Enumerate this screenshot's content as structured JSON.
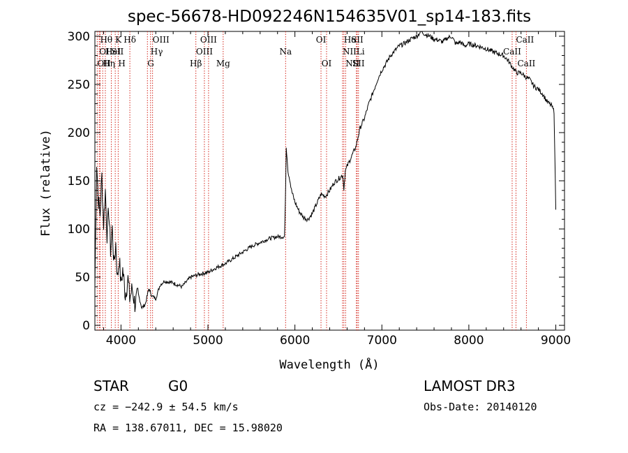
{
  "chart_data": {
    "type": "line",
    "title": "spec-56678-HD092246N154635V01_sp14-183.fits",
    "xlabel": "Wavelength (Å)",
    "ylabel": "Flux (relative)",
    "xlim": [
      3700,
      9100
    ],
    "ylim": [
      -5,
      305
    ],
    "x_ticks": [
      4000,
      5000,
      6000,
      7000,
      8000,
      9000
    ],
    "y_ticks": [
      0,
      50,
      100,
      150,
      200,
      250,
      300
    ],
    "x_tick_labels": [
      "4000",
      "5000",
      "6000",
      "7000",
      "8000",
      "9000"
    ],
    "y_tick_labels": [
      "0",
      "50",
      "100",
      "150",
      "200",
      "250",
      "300"
    ],
    "series": [
      {
        "name": "flux",
        "x": [
          3700,
          3720,
          3740,
          3760,
          3780,
          3800,
          3820,
          3840,
          3860,
          3880,
          3900,
          3920,
          3940,
          3960,
          3980,
          4000,
          4020,
          4050,
          4080,
          4100,
          4130,
          4160,
          4200,
          4240,
          4280,
          4320,
          4360,
          4400,
          4450,
          4500,
          4600,
          4700,
          4800,
          4900,
          5000,
          5100,
          5200,
          5300,
          5400,
          5500,
          5600,
          5700,
          5800,
          5880,
          5890,
          5900,
          5910,
          5920,
          5940,
          5960,
          6000,
          6050,
          6100,
          6150,
          6200,
          6250,
          6300,
          6350,
          6400,
          6450,
          6500,
          6550,
          6563,
          6580,
          6600,
          6650,
          6700,
          6750,
          6800,
          6850,
          6900,
          6950,
          7000,
          7050,
          7100,
          7150,
          7200,
          7250,
          7300,
          7350,
          7400,
          7450,
          7500,
          7550,
          7600,
          7650,
          7700,
          7750,
          7800,
          7850,
          7900,
          7950,
          8000,
          8100,
          8200,
          8300,
          8400,
          8450,
          8500,
          8550,
          8600,
          8650,
          8700,
          8750,
          8800,
          8850,
          8900,
          8950,
          8980,
          9000
        ],
        "y": [
          40,
          170,
          130,
          115,
          155,
          105,
          140,
          95,
          120,
          78,
          100,
          62,
          85,
          48,
          70,
          42,
          58,
          32,
          48,
          28,
          38,
          22,
          32,
          18,
          22,
          38,
          30,
          28,
          42,
          46,
          44,
          40,
          50,
          53,
          55,
          60,
          64,
          70,
          76,
          82,
          86,
          90,
          92,
          92,
          125,
          185,
          175,
          160,
          152,
          140,
          128,
          118,
          112,
          110,
          116,
          126,
          136,
          134,
          140,
          148,
          152,
          156,
          142,
          160,
          165,
          175,
          185,
          205,
          215,
          230,
          242,
          255,
          265,
          272,
          280,
          285,
          290,
          292,
          295,
          298,
          300,
          305,
          302,
          300,
          297,
          296,
          294,
          298,
          300,
          292,
          294,
          290,
          292,
          290,
          287,
          283,
          280,
          275,
          268,
          262,
          262,
          258,
          255,
          248,
          245,
          240,
          232,
          228,
          222,
          120
        ]
      }
    ],
    "line_ids": [
      {
        "wave": 3727,
        "label": "OII",
        "row": 3,
        "anchor": "start"
      },
      {
        "wave": 3750,
        "label": "OII",
        "row": 2,
        "anchor": "start"
      },
      {
        "wave": 3760,
        "label": "Hθ",
        "row": 1,
        "anchor": "start"
      },
      {
        "wave": 3790,
        "label": "Hη",
        "row": 3,
        "anchor": "start"
      },
      {
        "wave": 3820,
        "label": "HeI",
        "row": 2,
        "anchor": "start"
      },
      {
        "wave": 3889,
        "label": "SII",
        "row": 2,
        "anchor": "start"
      },
      {
        "wave": 3934,
        "label": "K",
        "row": 1,
        "anchor": "start"
      },
      {
        "wave": 3968,
        "label": "H",
        "row": 3,
        "anchor": "start"
      },
      {
        "wave": 4102,
        "label": "Hδ",
        "row": 1,
        "anchor": "middle"
      },
      {
        "wave": 4340,
        "label": "Hγ",
        "row": 2,
        "anchor": "start"
      },
      {
        "wave": 4363,
        "label": "OIII",
        "row": 1,
        "anchor": "start"
      },
      {
        "wave": 4304,
        "label": "G",
        "row": 3,
        "anchor": "start"
      },
      {
        "wave": 4861,
        "label": "Hβ",
        "row": 3,
        "anchor": "middle"
      },
      {
        "wave": 4959,
        "label": "OIII",
        "row": 2,
        "anchor": "middle"
      },
      {
        "wave": 5007,
        "label": "OIII",
        "row": 1,
        "anchor": "middle"
      },
      {
        "wave": 5175,
        "label": "Mg",
        "row": 3,
        "anchor": "middle"
      },
      {
        "wave": 5893,
        "label": "Na",
        "row": 2,
        "anchor": "middle"
      },
      {
        "wave": 6300,
        "label": "OI",
        "row": 1,
        "anchor": "middle"
      },
      {
        "wave": 6364,
        "label": "OI",
        "row": 3,
        "anchor": "middle"
      },
      {
        "wave": 6548,
        "label": "NII",
        "row": 2,
        "anchor": "start"
      },
      {
        "wave": 6563,
        "label": "Hα",
        "row": 1,
        "anchor": "start"
      },
      {
        "wave": 6583,
        "label": "NII",
        "row": 3,
        "anchor": "start"
      },
      {
        "wave": 6707,
        "label": "Li",
        "row": 2,
        "anchor": "start"
      },
      {
        "wave": 6716,
        "label": "SII",
        "row": 1,
        "anchor": "middle"
      },
      {
        "wave": 6731,
        "label": "SII",
        "row": 3,
        "anchor": "middle"
      },
      {
        "wave": 8498,
        "label": "CaII",
        "row": 2,
        "anchor": "middle"
      },
      {
        "wave": 8542,
        "label": "CaII",
        "row": 1,
        "anchor": "start"
      },
      {
        "wave": 8662,
        "label": "CaII",
        "row": 3,
        "anchor": "middle"
      }
    ]
  },
  "info": {
    "class": "STAR",
    "subclass": "G0",
    "survey": "LAMOST DR3",
    "cz": "cz = −242.9 ± 54.5 km/s",
    "obs_date": "Obs-Date: 20140120",
    "radec": "RA = 138.67011, DEC =  15.98020"
  },
  "colors": {
    "line_marker": "#d4261c",
    "spectrum": "#000000",
    "axes": "#000000"
  }
}
